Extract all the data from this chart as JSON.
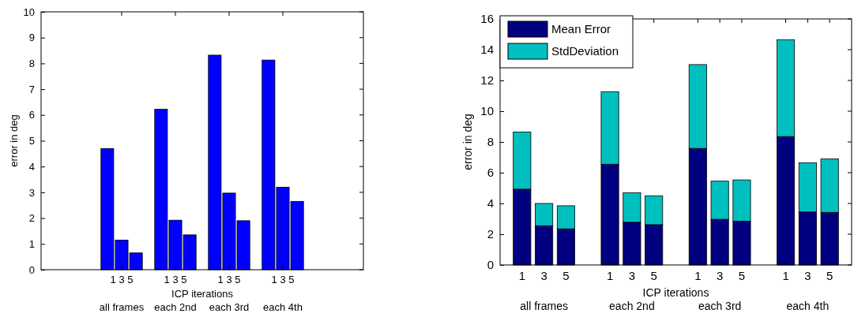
{
  "chart_data": [
    {
      "type": "bar",
      "xlabel": "ICP iterations",
      "ylabel": "error in deg",
      "categories": [
        null,
        "1 3 5",
        "1 3 5",
        "1 3 5",
        "1 3 5",
        null
      ],
      "series": [
        {
          "color": "#0000ff",
          "values": [
            null,
            4.7,
            6.22,
            8.32,
            8.13,
            null
          ]
        },
        {
          "color": "#0000ff",
          "values": [
            null,
            1.15,
            1.92,
            2.97,
            3.2,
            null
          ]
        },
        {
          "color": "#0000ff",
          "values": [
            null,
            0.65,
            1.35,
            1.9,
            2.65,
            null
          ]
        }
      ],
      "ylim": [
        0,
        10
      ],
      "yticks": [
        0,
        1,
        2,
        3,
        4,
        5,
        6,
        7,
        8,
        9,
        10
      ],
      "grid": false,
      "legend": false,
      "annotations": [
        "all frames",
        "each 2nd",
        "each 3rd",
        "each 4th"
      ]
    },
    {
      "type": "bar",
      "stacked": true,
      "xlabel": "ICP iterations",
      "ylabel": "error in deg",
      "categories": [
        "1",
        "3",
        "5",
        null,
        "1",
        "3",
        "5",
        null,
        "1",
        "3",
        "5",
        null,
        "1",
        "3",
        "5"
      ],
      "series": [
        {
          "name": "Mean Error",
          "color": "#000080",
          "values": [
            4.93,
            2.55,
            2.35,
            null,
            6.55,
            2.78,
            2.62,
            null,
            7.58,
            2.97,
            2.85,
            null,
            8.35,
            3.45,
            3.42
          ]
        },
        {
          "name": "StdDeviation",
          "color": "#00bfbf",
          "values": [
            3.72,
            1.45,
            1.5,
            null,
            4.72,
            1.92,
            1.88,
            null,
            5.45,
            2.48,
            2.68,
            null,
            6.3,
            3.2,
            3.48
          ]
        }
      ],
      "ylim": [
        0,
        16
      ],
      "yticks": [
        0,
        2,
        4,
        6,
        8,
        10,
        12,
        14,
        16
      ],
      "grid": false,
      "legend": "top left",
      "annotations": [
        "all frames",
        "each 2nd",
        "each 3rd",
        "each 4th"
      ]
    }
  ]
}
